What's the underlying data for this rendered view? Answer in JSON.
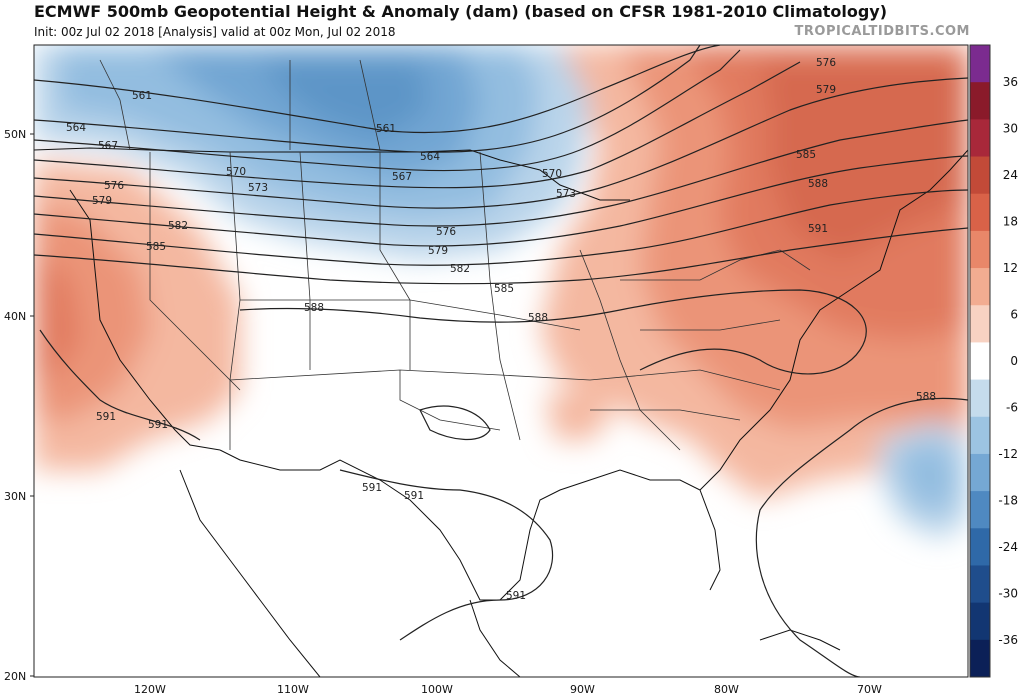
{
  "header": {
    "title": "ECMWF 500mb Geopotential Height & Anomaly (dam) (based on CFSR 1981-2010 Climatology)",
    "subtitle_init": "Init: 00z Jul 02 2018",
    "subtitle_analysis": "[Analysis]",
    "subtitle_valid": "valid at 00z Mon, Jul 02 2018",
    "credit": "TROPICALTIDBITS.COM"
  },
  "axes": {
    "lat_labels": [
      "50N",
      "40N",
      "30N",
      "20N"
    ],
    "lon_labels": [
      "120W",
      "110W",
      "100W",
      "90W",
      "80W",
      "70W"
    ]
  },
  "colorbar": {
    "ticks": [
      "36",
      "30",
      "24",
      "18",
      "12",
      "6",
      "0",
      "-6",
      "-12",
      "-18",
      "-24",
      "-30",
      "-36"
    ],
    "colors": [
      "#7b2b8f",
      "#8a1a2a",
      "#a8283a",
      "#c24a38",
      "#d96248",
      "#e98769",
      "#f2ac91",
      "#f8d2c2",
      "#ffffff",
      "#c5dcec",
      "#9cc4e2",
      "#75a8d4",
      "#4f89c1",
      "#2f69a8",
      "#1f4d8c",
      "#123672",
      "#0b2057"
    ]
  },
  "contour_labels": [
    "561",
    "564",
    "567",
    "570",
    "573",
    "576",
    "579",
    "582",
    "585",
    "588",
    "561",
    "564",
    "567",
    "570",
    "573",
    "576",
    "579",
    "582",
    "585",
    "588",
    "591",
    "591",
    "591",
    "591",
    "591",
    "576",
    "579",
    "585",
    "588",
    "591",
    "588"
  ]
}
